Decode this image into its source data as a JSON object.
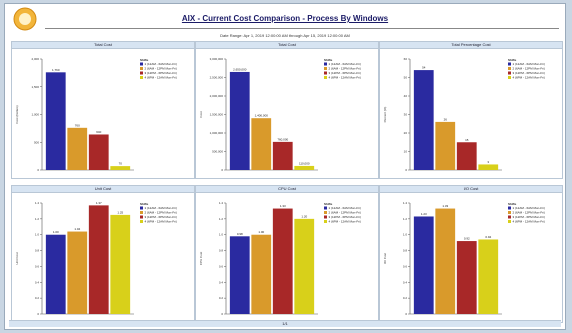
{
  "report": {
    "title": "AIX - Current Cost Comparison - Process By Windows",
    "subtitle": "Date Range: Apr 1, 2019 12:00:00 AM through Apr 15, 2019 12:00:00 AM",
    "footer": "1/1"
  },
  "colors": {
    "series": [
      "#2a2aa0",
      "#d99a2b",
      "#a82828",
      "#d8d01a"
    ]
  },
  "chart_data": [
    {
      "type": "bar",
      "title": "Total Cost",
      "ylabel": "Cost (Dollars)",
      "ylim": [
        0,
        2000
      ],
      "legend_title": "Shifts",
      "legend_placement": "right",
      "categories": [
        "1",
        "2",
        "3",
        "4"
      ],
      "values": [
        1760,
        760,
        640,
        70
      ],
      "value_labels": [
        "1,760",
        "760",
        "640",
        "70"
      ],
      "ticks": [
        "0",
        "500",
        "1,000",
        "1,500",
        "2,000"
      ]
    },
    {
      "type": "bar",
      "title": "Total Cost",
      "ylabel": "Cost",
      "ylim": [
        0,
        3000000
      ],
      "legend_title": "Shifts",
      "legend_placement": "right",
      "categories": [
        "1",
        "2",
        "3",
        "4"
      ],
      "values": [
        2650000,
        1400000,
        760000,
        110000
      ],
      "value_labels": [
        "2,650,000",
        "1,400,000",
        "760,000",
        "110,000"
      ],
      "ticks": [
        "0",
        "500,000",
        "1,000,000",
        "1,500,000",
        "2,000,000",
        "2,500,000",
        "3,000,000"
      ]
    },
    {
      "type": "bar",
      "title": "Total Percentage Cost",
      "ylabel": "Percent (%)",
      "ylim": [
        0,
        60
      ],
      "legend_title": "Shifts",
      "legend_placement": "right",
      "categories": [
        "1",
        "2",
        "3",
        "4"
      ],
      "values": [
        54,
        26,
        15,
        3
      ],
      "value_labels": [
        "54",
        "26",
        "15",
        "3"
      ],
      "ticks": [
        "0",
        "10",
        "20",
        "30",
        "40",
        "50",
        "60"
      ]
    },
    {
      "type": "bar",
      "title": "Unit Cost",
      "ylabel": "Unit Cost",
      "ylim": [
        0,
        1.4
      ],
      "legend_title": "Shifts",
      "legend_placement": "right",
      "categories": [
        "1",
        "2",
        "3",
        "4"
      ],
      "values": [
        1.0,
        1.04,
        1.37,
        1.25
      ],
      "value_labels": [
        "1.00",
        "1.04",
        "1.37",
        "1.25"
      ],
      "ticks": [
        "0",
        "0.2",
        "0.4",
        "0.6",
        "0.8",
        "1.0",
        "1.2",
        "1.4"
      ]
    },
    {
      "type": "bar",
      "title": "CPU Cost",
      "ylabel": "CPU Cost",
      "ylim": [
        0,
        1.4
      ],
      "legend_title": "Shifts",
      "legend_placement": "right",
      "categories": [
        "1",
        "2",
        "3",
        "4"
      ],
      "values": [
        0.98,
        1.0,
        1.33,
        1.2
      ],
      "value_labels": [
        "0.98",
        "1.00",
        "1.33",
        "1.20"
      ],
      "ticks": [
        "0",
        "0.2",
        "0.4",
        "0.6",
        "0.8",
        "1.0",
        "1.2",
        "1.4"
      ]
    },
    {
      "type": "bar",
      "title": "I/O Cost",
      "ylabel": "I/O Cost",
      "ylim": [
        0,
        1.4
      ],
      "legend_title": "Shifts",
      "legend_placement": "right",
      "categories": [
        "1",
        "2",
        "3",
        "4"
      ],
      "values": [
        1.23,
        1.33,
        0.92,
        0.94
      ],
      "value_labels": [
        "1.23",
        "1.33",
        "0.92",
        "0.94"
      ],
      "ticks": [
        "0",
        "0.2",
        "0.4",
        "0.6",
        "0.8",
        "1.0",
        "1.2",
        "1.4"
      ]
    }
  ],
  "legend_entries": [
    "1 (12AM - 6AM Mon-Fri)",
    "2 (6AM - 12PM Mon-Fri)",
    "3 (12PM - 6PM Mon-Fri)",
    "4 (6PM - 12AM Mon-Fri)"
  ]
}
